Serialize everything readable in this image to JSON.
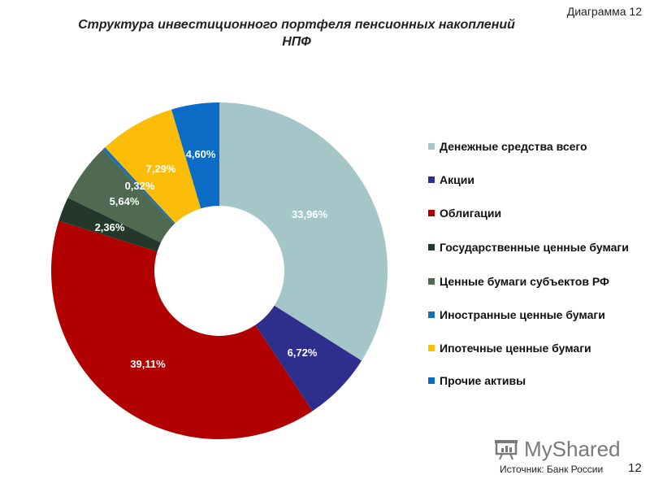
{
  "header": {
    "diagram_number": "Диаграмма 12",
    "title": "Структура инвестиционного портфеля пенсионных накоплений НПФ"
  },
  "chart_data": {
    "type": "pie",
    "subtype": "donut",
    "title": "Структура инвестиционного портфеля пенсионных накоплений НПФ",
    "legend_position": "right",
    "categories": [
      "Денежные средства всего",
      "Акции",
      "Облигации",
      "Государственные ценные бумаги",
      "Ценные бумаги субъектов РФ",
      "Иностранные ценные бумаги",
      "Ипотечные ценные бумаги",
      "Прочие активы"
    ],
    "values": [
      33.96,
      6.72,
      39.11,
      2.36,
      5.64,
      0.32,
      7.29,
      4.6
    ],
    "labels": [
      "33,96%",
      "6,72%",
      "39,11%",
      "2,36%",
      "5,64%",
      "0,32%",
      "7,29%",
      "4,60%"
    ],
    "colors": [
      "#a5c6c8",
      "#2e2f8c",
      "#b00000",
      "#24372b",
      "#4f6a51",
      "#1b6fb3",
      "#fbbd08",
      "#0a6cc4"
    ]
  },
  "legend": {
    "items": [
      {
        "label": "Денежные средства всего",
        "color": "#a5c6c8"
      },
      {
        "label": "Акции",
        "color": "#2e2f8c"
      },
      {
        "label": "Облигации",
        "color": "#b00000"
      },
      {
        "label": "Государственные ценные бумаги",
        "color": "#24372b"
      },
      {
        "label": "Ценные бумаги субъектов РФ",
        "color": "#4f6a51"
      },
      {
        "label": "Иностранные ценные бумаги",
        "color": "#1b6fb3"
      },
      {
        "label": "Ипотечные ценные бумаги",
        "color": "#fbbd08"
      },
      {
        "label": "Прочие активы",
        "color": "#0a6cc4"
      }
    ]
  },
  "footer": {
    "source": "Источник:  Банк России",
    "page_number": "12",
    "watermark": "MyShared"
  }
}
